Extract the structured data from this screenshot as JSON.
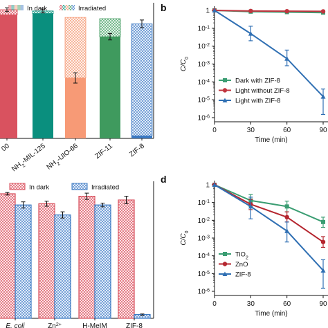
{
  "chart_data": [
    {
      "panel": "a",
      "type": "bar",
      "stacked": true,
      "categories": [
        "00",
        "NH2-MIL-125",
        "NH2-UIO-66",
        "ZIF-11",
        "ZIF-8"
      ],
      "category_labels": [
        {
          "main": "00"
        },
        {
          "main": "NH",
          "sub": "2",
          "rest": "-MIL-125"
        },
        {
          "main": "NH",
          "sub": "2",
          "rest": "-UIO-66"
        },
        {
          "main": "ZIF-11"
        },
        {
          "main": "ZIF-8"
        }
      ],
      "legend": [
        "In dark",
        "Irradiated"
      ],
      "series": [
        {
          "name": "In dark",
          "values": [
            96,
            97,
            47,
            79,
            2
          ]
        },
        {
          "name": "Irradiated",
          "values": [
            4,
            2,
            47,
            14,
            87
          ]
        }
      ],
      "error": [
        1.5,
        1.5,
        4,
        2.5,
        3
      ],
      "ylim": [
        0,
        100
      ],
      "colors": [
        {
          "solid": "#d9525f",
          "light": "#f4c5c9"
        },
        {
          "solid": "#0a8f7e",
          "light": "#a9dcd4"
        },
        {
          "solid": "#f79a76",
          "light": "#fbd9c8"
        },
        {
          "solid": "#3f9a5e",
          "light": "#bfe0c8"
        },
        {
          "solid": "#3a78c2",
          "light": "#c5d7f0"
        }
      ]
    },
    {
      "panel": "b",
      "type": "line",
      "yscale": "log",
      "ylim": [
        1e-06,
        1
      ],
      "xlim": [
        0,
        90
      ],
      "x_ticks": [
        "0",
        "30",
        "60",
        "90"
      ],
      "xlabel": "Time (min)",
      "ylabel": "C/C0",
      "legend_position": "bottom-left",
      "series": [
        {
          "name": "Dark with ZIF-8",
          "color": "#3a9d72",
          "x": [
            0,
            30,
            60,
            90
          ],
          "y": [
            1,
            0.85,
            0.8,
            0.75
          ],
          "err_low": [
            1,
            0.8,
            0.75,
            0.7
          ],
          "err_high": [
            1,
            0.9,
            0.85,
            0.8
          ]
        },
        {
          "name": "Light without ZIF-8",
          "color": "#c0353f",
          "x": [
            0,
            30,
            60,
            90
          ],
          "y": [
            1,
            0.93,
            0.9,
            0.88
          ],
          "err_low": [
            1,
            0.9,
            0.87,
            0.85
          ],
          "err_high": [
            1,
            0.96,
            0.93,
            0.91
          ]
        },
        {
          "name": "Light with ZIF-8",
          "color": "#2f6fb3",
          "x": [
            0,
            30,
            60,
            90
          ],
          "y": [
            1,
            0.05,
            0.002,
            1.5e-05
          ],
          "err_low": [
            1,
            0.02,
            0.0008,
            1.5e-06
          ],
          "err_high": [
            1,
            0.13,
            0.006,
            4e-05
          ]
        }
      ]
    },
    {
      "panel": "c",
      "type": "bar",
      "categories": [
        "E. coli",
        "Zn2+",
        "H-MeIM",
        "ZIF-8"
      ],
      "category_labels": [
        {
          "main": "E. coli",
          "italic": true
        },
        {
          "main": "Zn",
          "sup": "2+"
        },
        {
          "main": "H-MeIM"
        },
        {
          "main": "ZIF-8"
        }
      ],
      "legend": [
        "In dark",
        "Irradiated"
      ],
      "series": [
        {
          "name": "In dark",
          "values": [
            100,
            92,
            98,
            95
          ]
        },
        {
          "name": "Irradiated",
          "values": [
            91,
            83,
            91,
            3
          ]
        }
      ],
      "error": [
        [
          1,
          2,
          2.5,
          3
        ],
        [
          2.5,
          2.5,
          1.5,
          0.5
        ]
      ],
      "ylim": [
        0,
        110
      ],
      "colors": {
        "dark": "#d9525f",
        "dark_light": "#f4c5c9",
        "irr": "#3a78c2",
        "irr_light": "#c5d7f0"
      }
    },
    {
      "panel": "d",
      "type": "line",
      "yscale": "log",
      "ylim": [
        1e-06,
        1
      ],
      "xlim": [
        0,
        90
      ],
      "x_ticks": [
        "0",
        "30",
        "60",
        "90"
      ],
      "xlabel": "Time (min)",
      "ylabel": "C/C0",
      "legend_position": "bottom-left",
      "series": [
        {
          "name": "TiO2",
          "label_main": "TiO",
          "label_sub": "2",
          "color": "#3a9d72",
          "x": [
            0,
            30,
            60,
            90
          ],
          "y": [
            1,
            0.13,
            0.06,
            0.008
          ],
          "err_low": [
            1,
            0.06,
            0.03,
            0.004
          ],
          "err_high": [
            1,
            0.28,
            0.12,
            0.015
          ]
        },
        {
          "name": "ZnO",
          "color": "#b5262f",
          "x": [
            0,
            30,
            60,
            90
          ],
          "y": [
            1,
            0.08,
            0.015,
            0.0006
          ],
          "err_low": [
            1,
            0.04,
            0.008,
            0.0003
          ],
          "err_high": [
            1,
            0.15,
            0.03,
            0.0012
          ]
        },
        {
          "name": "ZIF-8",
          "color": "#2f6fb3",
          "x": [
            0,
            30,
            60,
            90
          ],
          "y": [
            1,
            0.06,
            0.0025,
            1.5e-05
          ],
          "err_low": [
            1,
            0.012,
            0.0006,
            1.5e-06
          ],
          "err_high": [
            1,
            0.2,
            0.008,
            6e-05
          ]
        }
      ]
    }
  ],
  "panels": {
    "a": "",
    "b": "b",
    "c": "",
    "d": "d"
  }
}
